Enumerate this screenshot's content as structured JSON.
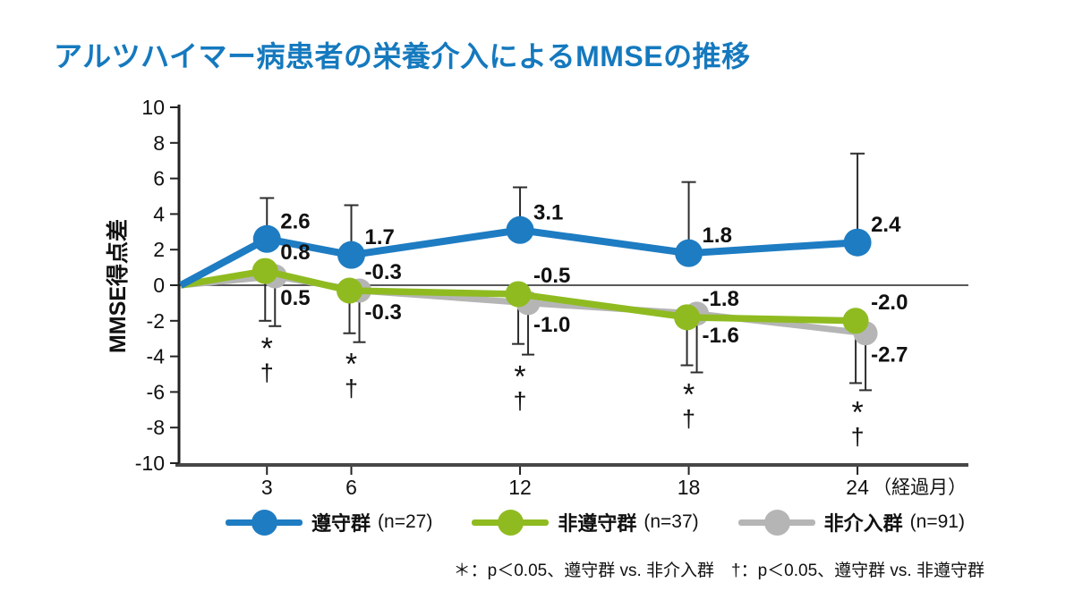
{
  "title": "アルツハイマー病患者の栄養介入によるMMSEの推移",
  "colors": {
    "title": "#1579BE",
    "axis": "#474747",
    "zero_line": "#222222",
    "error_bar": "#2d2d2d",
    "text": "#111111",
    "background": "#ffffff"
  },
  "chart_data": {
    "type": "line",
    "title": "アルツハイマー病患者の栄養介入によるMMSEの推移",
    "ylabel": "MMSE得点差",
    "ylim": [
      -10,
      10
    ],
    "ytick_step": 2,
    "x": [
      3,
      6,
      12,
      18,
      24
    ],
    "x_origin": 0,
    "origin_value": 0,
    "xlabel_suffix": "（経過月）",
    "grid": "off",
    "legend_position": "bottom",
    "series": [
      {
        "id": "adherent",
        "name": "遵守群",
        "n": "(n=27)",
        "color": "#1E7CC2",
        "values": [
          2.6,
          1.7,
          3.1,
          1.8,
          2.4
        ],
        "error_top": [
          4.9,
          4.5,
          5.5,
          5.8,
          7.4
        ]
      },
      {
        "id": "non-adherent",
        "name": "非遵守群",
        "n": "(n=37)",
        "color": "#8FBB21",
        "values": [
          0.8,
          -0.3,
          -0.5,
          -1.8,
          -2.0
        ],
        "error_bottom": [
          -2.0,
          -2.7,
          -3.3,
          -4.5,
          -5.5
        ]
      },
      {
        "id": "non-intervention",
        "name": "非介入群",
        "n": "(n=91)",
        "color": "#B5B5B5",
        "values": [
          0.5,
          -0.3,
          -1.0,
          -1.6,
          -2.7
        ],
        "error_bottom": [
          -2.3,
          -3.2,
          -3.9,
          -4.9,
          -5.9
        ]
      }
    ],
    "significance": {
      "star": "*",
      "dagger": "†",
      "months": [
        3,
        6,
        12,
        18,
        24
      ]
    },
    "footnote": "＊：p＜0.05、遵守群 vs. 非介入群　†：p＜0.05、遵守群 vs. 非遵守群"
  }
}
